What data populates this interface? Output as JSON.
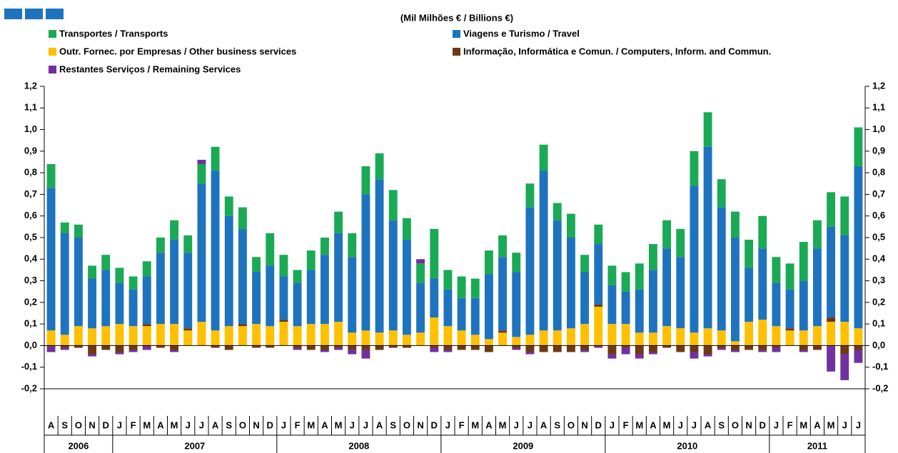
{
  "chart_data": {
    "type": "stacked_bar",
    "subtitle": "(Mil Milhões € / Billions €)",
    "groups": [
      {
        "label": "2006",
        "categories": [
          "A",
          "S",
          "O",
          "N",
          "D"
        ]
      },
      {
        "label": "2007",
        "categories": [
          "J",
          "F",
          "M",
          "A",
          "M",
          "J",
          "J",
          "A",
          "S",
          "O",
          "N",
          "D"
        ]
      },
      {
        "label": "2008",
        "categories": [
          "J",
          "F",
          "M",
          "A",
          "M",
          "J",
          "J",
          "A",
          "S",
          "O",
          "N",
          "D"
        ]
      },
      {
        "label": "2009",
        "categories": [
          "J",
          "F",
          "M",
          "A",
          "M",
          "J",
          "J",
          "A",
          "S",
          "O",
          "N",
          "D"
        ]
      },
      {
        "label": "2010",
        "categories": [
          "J",
          "F",
          "M",
          "A",
          "M",
          "J",
          "J",
          "A",
          "S",
          "O",
          "N",
          "D"
        ]
      },
      {
        "label": "2011",
        "categories": [
          "J",
          "F",
          "M",
          "A",
          "M",
          "J",
          "J"
        ]
      }
    ],
    "series": [
      {
        "name": "Transportes / Transports",
        "color": "#1aaa55",
        "values": [
          0.11,
          0.05,
          0.06,
          0.06,
          0.07,
          0.07,
          0.06,
          0.07,
          0.07,
          0.09,
          0.08,
          0.09,
          0.11,
          0.09,
          0.1,
          0.07,
          0.15,
          0.1,
          0.06,
          0.09,
          0.08,
          0.1,
          0.11,
          0.13,
          0.12,
          0.14,
          0.1,
          0.09,
          0.23,
          0.09,
          0.1,
          0.09,
          0.11,
          0.1,
          0.09,
          0.11,
          0.12,
          0.08,
          0.11,
          0.08,
          0.09,
          0.09,
          0.09,
          0.12,
          0.12,
          0.13,
          0.13,
          0.16,
          0.16,
          0.13,
          0.12,
          0.13,
          0.15,
          0.12,
          0.12,
          0.18,
          0.13,
          0.16,
          0.18,
          0.18
        ]
      },
      {
        "name": "Viagens e Turismo / Travel",
        "color": "#1e73be",
        "values": [
          0.66,
          0.47,
          0.41,
          0.23,
          0.26,
          0.19,
          0.17,
          0.22,
          0.33,
          0.39,
          0.35,
          0.64,
          0.74,
          0.51,
          0.44,
          0.24,
          0.28,
          0.2,
          0.2,
          0.25,
          0.32,
          0.41,
          0.35,
          0.63,
          0.71,
          0.51,
          0.44,
          0.23,
          0.18,
          0.17,
          0.15,
          0.17,
          0.3,
          0.34,
          0.3,
          0.59,
          0.74,
          0.51,
          0.42,
          0.24,
          0.28,
          0.18,
          0.15,
          0.2,
          0.29,
          0.36,
          0.33,
          0.68,
          0.84,
          0.57,
          0.48,
          0.25,
          0.33,
          0.2,
          0.18,
          0.23,
          0.36,
          0.42,
          0.4,
          0.75
        ]
      },
      {
        "name": "Outr. Fornec. por Empresas  / Other business services",
        "color": "#ffc000",
        "values": [
          0.07,
          0.05,
          0.09,
          0.08,
          0.09,
          0.1,
          0.09,
          0.09,
          0.1,
          0.1,
          0.07,
          0.11,
          0.07,
          0.09,
          0.09,
          0.1,
          0.09,
          0.11,
          0.09,
          0.1,
          0.1,
          0.11,
          0.06,
          0.07,
          0.06,
          0.07,
          0.05,
          0.06,
          0.13,
          0.09,
          0.07,
          0.05,
          0.03,
          0.06,
          0.04,
          0.05,
          0.07,
          0.07,
          0.08,
          0.1,
          0.18,
          0.1,
          0.1,
          0.06,
          0.06,
          0.09,
          0.08,
          0.06,
          0.08,
          0.07,
          0.02,
          0.11,
          0.12,
          0.09,
          0.07,
          0.07,
          0.09,
          0.11,
          0.11,
          0.08
        ]
      },
      {
        "name": "Informação, Informática e Comun. / Computers, Inform. and Commun.",
        "color": "#6b3a12",
        "values": [
          0,
          -0.01,
          -0.01,
          -0.04,
          -0.02,
          -0.03,
          -0.02,
          0.01,
          -0.01,
          -0.02,
          0.01,
          0,
          -0.01,
          -0.02,
          0.01,
          -0.01,
          -0.01,
          0.01,
          -0.01,
          -0.02,
          -0.02,
          -0.01,
          -0.02,
          -0.02,
          -0.02,
          -0.01,
          -0.01,
          0,
          -0.01,
          -0.02,
          -0.02,
          -0.02,
          -0.03,
          0.01,
          -0.01,
          -0.03,
          -0.03,
          -0.03,
          -0.03,
          -0.02,
          0.01,
          -0.04,
          -0.01,
          -0.04,
          -0.03,
          -0.01,
          -0.03,
          -0.03,
          -0.04,
          -0.01,
          -0.02,
          -0.02,
          -0.02,
          -0.01,
          0.01,
          -0.02,
          -0.02,
          0.02,
          -0.04,
          -0.02
        ]
      },
      {
        "name": "Restantes Serviços / Remaining Services",
        "color": "#7030a0",
        "values": [
          -0.03,
          -0.01,
          0,
          -0.01,
          0,
          -0.01,
          -0.01,
          -0.02,
          0,
          -0.01,
          0,
          0.02,
          0,
          0,
          0,
          0,
          0,
          0,
          -0.01,
          0,
          -0.01,
          -0.01,
          -0.02,
          -0.04,
          0,
          0,
          0,
          0.02,
          -0.02,
          -0.01,
          0,
          0,
          0,
          0,
          -0.01,
          -0.01,
          0,
          0,
          0,
          -0.01,
          -0.01,
          -0.02,
          -0.03,
          -0.02,
          -0.01,
          0,
          0,
          -0.03,
          -0.01,
          -0.01,
          -0.01,
          0,
          -0.01,
          -0.02,
          0,
          -0.01,
          0,
          -0.12,
          -0.12,
          -0.06
        ]
      }
    ],
    "ylim": [
      -0.2,
      1.2
    ],
    "yticks": [
      {
        "value": 1.2,
        "label": "1,2"
      },
      {
        "value": 1.1,
        "label": "1,1"
      },
      {
        "value": 1.0,
        "label": "1,0"
      },
      {
        "value": 0.9,
        "label": "0,9"
      },
      {
        "value": 0.8,
        "label": "0,8"
      },
      {
        "value": 0.7,
        "label": "0,7"
      },
      {
        "value": 0.6,
        "label": "0,6"
      },
      {
        "value": 0.5,
        "label": "0,5"
      },
      {
        "value": 0.4,
        "label": "0,4"
      },
      {
        "value": 0.3,
        "label": "0,3"
      },
      {
        "value": 0.2,
        "label": "0,2"
      },
      {
        "value": 0.1,
        "label": "0,1"
      },
      {
        "value": 0,
        "label": "0,0"
      },
      {
        "value": -0.1,
        "label": "-0,1"
      },
      {
        "value": -0.2,
        "label": "-0,2"
      }
    ]
  }
}
